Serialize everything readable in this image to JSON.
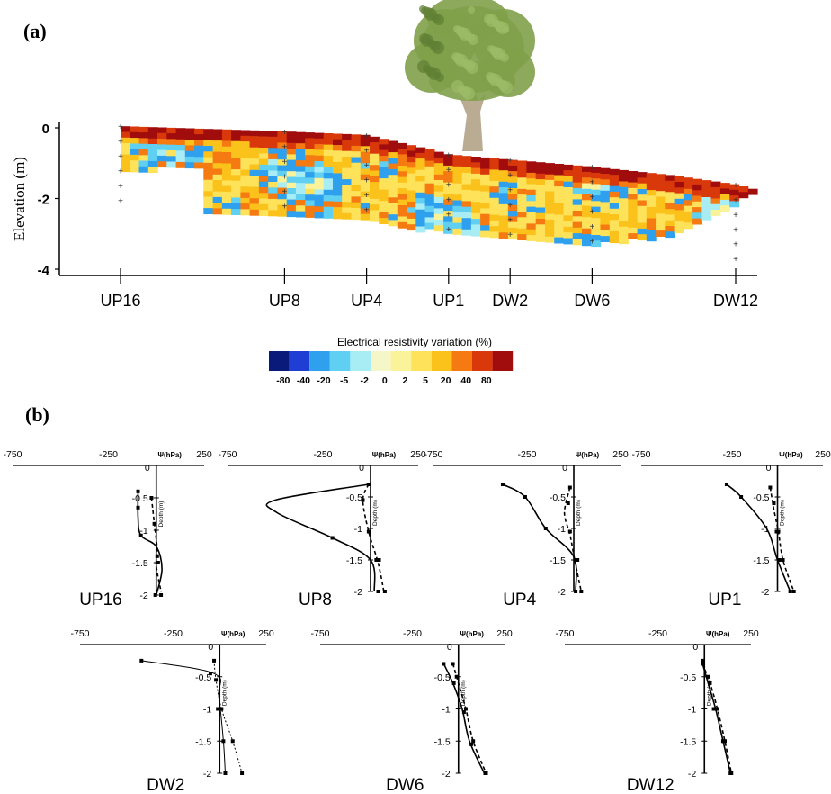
{
  "panel_a": {
    "label": "(a)",
    "colors": {
      "tree_canopy": "#7fa04a",
      "tree_trunk": "#b9ac92"
    }
  },
  "panel_b": {
    "label": "(b)"
  },
  "chart_data": [
    {
      "type": "heatmap",
      "ylabel": "Elevation (m)",
      "yticks": [
        0,
        -2,
        -4
      ],
      "ylim": [
        -4.2,
        0.2
      ],
      "stations": [
        {
          "name": "UP16",
          "x": 0
        },
        {
          "name": "UP8",
          "x": 8
        },
        {
          "name": "UP4",
          "x": 12
        },
        {
          "name": "UP1",
          "x": 16
        },
        {
          "name": "DW2",
          "x": 19
        },
        {
          "name": "DW6",
          "x": 23
        },
        {
          "name": "DW12",
          "x": 30
        }
      ],
      "xlim": [
        -3,
        32
      ],
      "surface_elevation": [
        {
          "x": 0,
          "z": 0.05
        },
        {
          "x": 8,
          "z": -0.1
        },
        {
          "x": 12,
          "z": -0.2
        },
        {
          "x": 15,
          "z": -0.6
        },
        {
          "x": 16,
          "z": -0.75
        },
        {
          "x": 19,
          "z": -0.9
        },
        {
          "x": 23,
          "z": -1.1
        },
        {
          "x": 27,
          "z": -1.35
        },
        {
          "x": 30,
          "z": -1.6
        },
        {
          "x": 31,
          "z": -1.75
        }
      ],
      "section_bottom": [
        {
          "x": 4,
          "z": -2.3
        },
        {
          "x": 12,
          "z": -2.6
        },
        {
          "x": 16,
          "z": -2.9
        },
        {
          "x": 19,
          "z": -3.0
        },
        {
          "x": 23,
          "z": -3.2
        },
        {
          "x": 27,
          "z": -3.0
        },
        {
          "x": 30,
          "z": -2.1
        },
        {
          "x": 31,
          "z": -1.75
        }
      ],
      "colorbar": {
        "title": "Electrical resistivity variation (%)",
        "ticks": [
          "-80",
          "-40",
          "-20",
          "-5",
          "-2",
          "0",
          "2",
          "5",
          "20",
          "40",
          "80"
        ],
        "colors": [
          "#0a1a7a",
          "#1f3fd4",
          "#2fa0ee",
          "#5fd0f2",
          "#a8ecf4",
          "#f5f7c8",
          "#fbf39a",
          "#fde25a",
          "#fbc21c",
          "#f57a12",
          "#d8380a",
          "#a10c0c"
        ]
      }
    },
    {
      "type": "line",
      "subplots": [
        {
          "name": "UP16",
          "solid": [
            [
              -95,
              0.4
            ],
            [
              -95,
              0.8
            ],
            [
              -80,
              1.08
            ],
            [
              0,
              1.25
            ],
            [
              30,
              1.6
            ],
            [
              0,
              2.0
            ]
          ],
          "dashed": [
            [
              -25,
              0.5
            ],
            [
              -10,
              0.9
            ],
            [
              5,
              1.3
            ],
            [
              0,
              1.55
            ],
            [
              25,
              1.95
            ]
          ],
          "markers_solid": [
            [
              -95,
              0.4
            ],
            [
              -95,
              0.65
            ],
            [
              -80,
              1.08
            ],
            [
              10,
              1.5
            ],
            [
              -5,
              2.0
            ]
          ],
          "markers_dashed": [
            [
              -25,
              0.5
            ],
            [
              -10,
              0.9
            ],
            [
              5,
              1.4
            ],
            [
              25,
              2.0
            ]
          ]
        },
        {
          "name": "UP8",
          "solid": [
            [
              -10,
              0.3
            ],
            [
              -500,
              0.55
            ],
            [
              -490,
              0.75
            ],
            [
              -200,
              1.15
            ],
            [
              0,
              1.5
            ],
            [
              20,
              2.0
            ]
          ],
          "dashed": [
            [
              -10,
              0.3
            ],
            [
              -40,
              0.55
            ],
            [
              -10,
              1.05
            ],
            [
              40,
              1.55
            ],
            [
              70,
              2.0
            ]
          ],
          "markers_solid": [
            [
              -10,
              0.3
            ],
            [
              -200,
              1.15
            ],
            [
              30,
              1.5
            ],
            [
              40,
              2.0
            ]
          ],
          "markers_dashed": [
            [
              -10,
              0.3
            ],
            [
              -40,
              0.55
            ],
            [
              -10,
              1.05
            ],
            [
              45,
              1.5
            ],
            [
              75,
              2.0
            ]
          ]
        },
        {
          "name": "UP4",
          "solid": [
            [
              -380,
              0.3
            ],
            [
              -260,
              0.5
            ],
            [
              -150,
              1.0
            ],
            [
              0,
              1.45
            ],
            [
              10,
              2.0
            ]
          ],
          "dashed": [
            [
              -20,
              0.35
            ],
            [
              -50,
              0.75
            ],
            [
              -20,
              1.1
            ],
            [
              5,
              1.5
            ],
            [
              40,
              2.0
            ]
          ],
          "markers_solid": [
            [
              -380,
              0.3
            ],
            [
              -260,
              0.5
            ],
            [
              -150,
              1.0
            ],
            [
              10,
              1.5
            ],
            [
              10,
              2.0
            ]
          ],
          "markers_dashed": [
            [
              -20,
              0.35
            ],
            [
              -30,
              0.6
            ],
            [
              -20,
              1.05
            ],
            [
              20,
              1.5
            ],
            [
              40,
              2.0
            ]
          ]
        },
        {
          "name": "UP1",
          "solid": [
            [
              -280,
              0.3
            ],
            [
              -200,
              0.5
            ],
            [
              -60,
              1.0
            ],
            [
              0,
              1.5
            ],
            [
              70,
              2.0
            ]
          ],
          "dashed": [
            [
              -40,
              0.35
            ],
            [
              -20,
              0.7
            ],
            [
              5,
              1.05
            ],
            [
              30,
              1.5
            ],
            [
              90,
              2.0
            ]
          ],
          "markers_solid": [
            [
              -280,
              0.3
            ],
            [
              -200,
              0.5
            ],
            [
              -5,
              1.05
            ],
            [
              10,
              1.5
            ],
            [
              70,
              2.0
            ]
          ],
          "markers_dashed": [
            [
              -40,
              0.35
            ],
            [
              -20,
              0.6
            ],
            [
              5,
              1.05
            ],
            [
              30,
              1.5
            ],
            [
              90,
              2.0
            ]
          ]
        },
        {
          "name": "DW2",
          "solid": [
            [
              -420,
              0.25
            ],
            [
              -30,
              0.45
            ],
            [
              -5,
              0.8
            ],
            [
              20,
              1.5
            ],
            [
              30,
              2.0
            ]
          ],
          "dashed": [
            [
              -30,
              0.25
            ],
            [
              -20,
              0.55
            ],
            [
              10,
              1.0
            ],
            [
              70,
              1.5
            ],
            [
              120,
              2.0
            ]
          ],
          "markers_solid": [
            [
              -420,
              0.25
            ],
            [
              -50,
              0.45
            ],
            [
              -10,
              1.0
            ],
            [
              20,
              1.5
            ],
            [
              30,
              2.0
            ]
          ],
          "markers_dashed": [
            [
              -30,
              0.25
            ],
            [
              -20,
              0.55
            ],
            [
              10,
              1.0
            ],
            [
              70,
              1.5
            ],
            [
              120,
              2.0
            ]
          ]
        },
        {
          "name": "DW6",
          "solid": [
            [
              -80,
              0.3
            ],
            [
              -30,
              0.6
            ],
            [
              20,
              1.0
            ],
            [
              60,
              1.5
            ],
            [
              140,
              2.0
            ]
          ],
          "dashed": [
            [
              -30,
              0.3
            ],
            [
              0,
              0.6
            ],
            [
              40,
              1.0
            ],
            [
              80,
              1.5
            ],
            [
              150,
              2.0
            ]
          ],
          "markers_solid": [
            [
              -80,
              0.3
            ],
            [
              -25,
              0.6
            ],
            [
              30,
              1.05
            ],
            [
              70,
              1.55
            ],
            [
              145,
              2.0
            ]
          ],
          "markers_dashed": [
            [
              -30,
              0.3
            ],
            [
              -10,
              0.5
            ],
            [
              40,
              1.0
            ],
            [
              80,
              1.5
            ],
            [
              150,
              2.0
            ]
          ]
        },
        {
          "name": "DW12",
          "solid": [
            [
              -10,
              0.3
            ],
            [
              20,
              0.6
            ],
            [
              60,
              1.0
            ],
            [
              100,
              1.5
            ],
            [
              140,
              2.0
            ]
          ],
          "dashed": [
            [
              -10,
              0.3
            ],
            [
              30,
              0.6
            ],
            [
              70,
              1.0
            ],
            [
              110,
              1.5
            ],
            [
              145,
              2.0
            ]
          ],
          "markers_solid": [
            [
              -10,
              0.25
            ],
            [
              20,
              0.5
            ],
            [
              50,
              1.0
            ],
            [
              100,
              1.5
            ],
            [
              140,
              2.0
            ]
          ],
          "markers_dashed": [
            [
              -10,
              0.3
            ],
            [
              30,
              0.6
            ],
            [
              70,
              1.0
            ],
            [
              110,
              1.5
            ],
            [
              145,
              2.0
            ]
          ]
        }
      ],
      "xlabel": "Ψ(hPa)",
      "ylabel": "Depth (m)",
      "xticks": [
        "-750",
        "-250",
        "250"
      ],
      "zero_label": "0",
      "xlim": [
        -750,
        250
      ],
      "ylim": [
        0,
        2
      ],
      "yticks": [
        "-0.5",
        "-1",
        "-1.5",
        "-2"
      ]
    }
  ]
}
